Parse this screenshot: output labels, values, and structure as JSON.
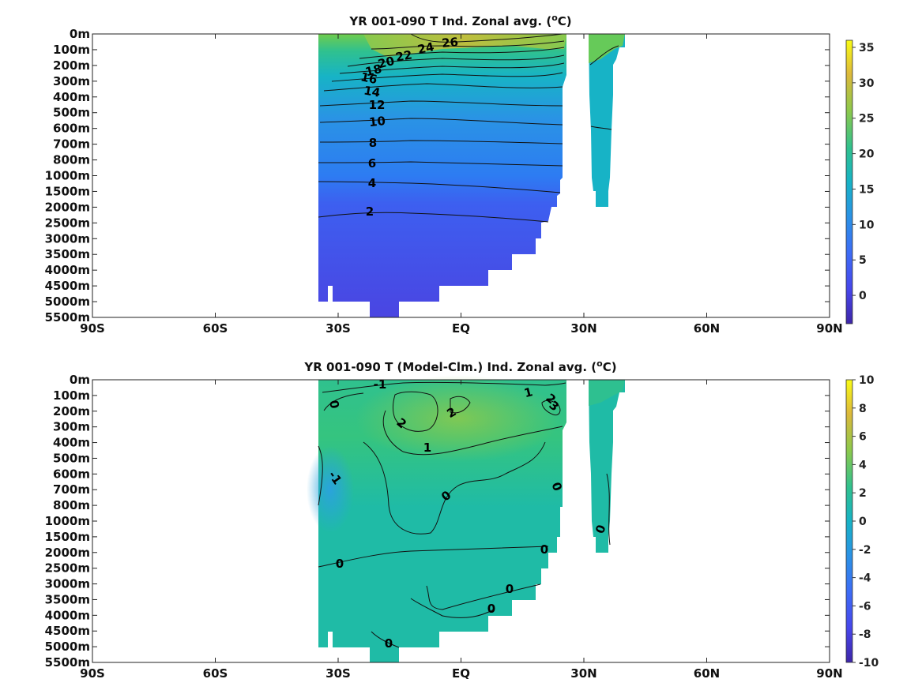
{
  "chart_data": [
    {
      "type": "heatmap",
      "title": "YR 001-090 T Ind. Zonal avg. (",
      "title_unit": "C)",
      "x_tick_labels": [
        "90S",
        "60S",
        "30S",
        "EQ",
        "30N",
        "60N",
        "90N"
      ],
      "x_tick_values": [
        -90,
        -60,
        -30,
        0,
        30,
        60,
        90
      ],
      "xlim": [
        -90,
        90
      ],
      "y_tick_labels": [
        "0m",
        "100m",
        "200m",
        "300m",
        "400m",
        "500m",
        "600m",
        "700m",
        "800m",
        "1000m",
        "1500m",
        "2000m",
        "2500m",
        "3000m",
        "3500m",
        "4000m",
        "4500m",
        "5000m",
        "5500m"
      ],
      "colorbar": {
        "ticks": [
          35,
          30,
          25,
          20,
          15,
          10,
          5,
          0
        ],
        "range": [
          -4,
          36
        ],
        "colormap": "parula"
      },
      "contour_labels": [
        "26",
        "24",
        "22",
        "20",
        "18",
        "16",
        "14",
        "12",
        "10",
        "8",
        "6",
        "4",
        "2"
      ],
      "contour_values": [
        26,
        24,
        22,
        20,
        18,
        16,
        14,
        12,
        10,
        8,
        6,
        4,
        2
      ],
      "approx_values": {
        "surface_equator": 28,
        "depth_200m_equator": 18,
        "depth_1000m": 5,
        "depth_2000m": 3,
        "deep_abyss": 1
      },
      "grid": false,
      "colorbar_location": "right"
    },
    {
      "type": "heatmap",
      "title": "YR 001-090 T (Model-Clm.) Ind. Zonal avg. (",
      "title_unit": "C)",
      "x_tick_labels": [
        "90S",
        "60S",
        "30S",
        "EQ",
        "30N",
        "60N",
        "90N"
      ],
      "x_tick_values": [
        -90,
        -60,
        -30,
        0,
        30,
        60,
        90
      ],
      "xlim": [
        -90,
        90
      ],
      "y_tick_labels": [
        "0m",
        "100m",
        "200m",
        "300m",
        "400m",
        "500m",
        "600m",
        "700m",
        "800m",
        "1000m",
        "1500m",
        "2000m",
        "2500m",
        "3000m",
        "3500m",
        "4000m",
        "4500m",
        "5000m",
        "5500m"
      ],
      "colorbar": {
        "ticks": [
          10,
          8,
          6,
          4,
          2,
          0,
          -2,
          -4,
          -6,
          -8,
          -10
        ],
        "range": [
          -10,
          10
        ],
        "colormap": "parula"
      },
      "contour_labels": [
        "-1",
        "2",
        "2",
        "1",
        "1",
        "3",
        "2",
        "0",
        "-1",
        "0",
        "0",
        "0",
        "0",
        "0",
        "0",
        "0",
        "0"
      ],
      "contour_values": [
        -1,
        0,
        1,
        2,
        3
      ],
      "approx_values": {
        "thermocline_bias": 2,
        "southwest_bias": -1,
        "deep_bias": 0
      },
      "grid": false,
      "colorbar_location": "right"
    }
  ],
  "colors": {
    "c_deep": "#3b3fd8",
    "c_blue": "#2d8bef",
    "c_cyan": "#17b3c6",
    "c_teal": "#1fbba6",
    "c_green": "#6fcc4d",
    "c_yellowgreen": "#b6c23b",
    "c_warm": "#d4bb2e"
  }
}
